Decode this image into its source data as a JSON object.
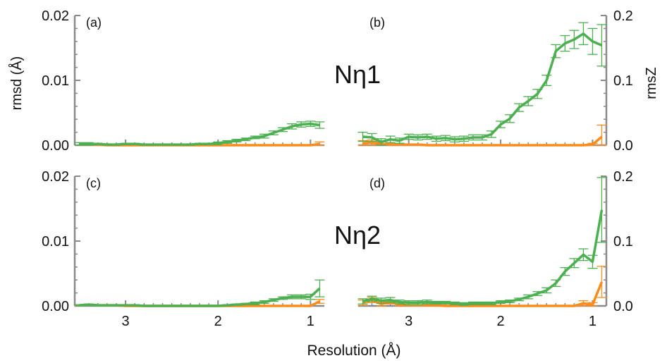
{
  "figure": {
    "xlabel": "Resolution (Å)",
    "ylabel_left": "rmsd (Å)",
    "ylabel_right": "rmsZ"
  },
  "chart_data": [
    {
      "type": "line",
      "panel": "a",
      "panel_label": "(a)",
      "annotation": "Nη1",
      "metric": "rmsd (Å)",
      "x_axis": {
        "reversed": true,
        "xlim": [
          3.55,
          0.85
        ],
        "ticks": [
          3,
          2,
          1
        ],
        "tick_labels": []
      },
      "y_axis": {
        "side": "left",
        "ylim": [
          0,
          0.02
        ],
        "ticks": [
          0,
          0.01,
          0.02
        ],
        "tick_labels": [
          "0.00",
          "0.01",
          "0.02"
        ]
      },
      "series": [
        {
          "color": "#4caf50",
          "x": [
            3.5,
            3.4,
            3.3,
            3.2,
            3.1,
            3.0,
            2.9,
            2.8,
            2.7,
            2.6,
            2.5,
            2.4,
            2.3,
            2.2,
            2.1,
            2.0,
            1.9,
            1.8,
            1.7,
            1.6,
            1.5,
            1.4,
            1.3,
            1.2,
            1.1,
            1.0,
            0.9
          ],
          "y": [
            0.0002,
            0.0002,
            0.0002,
            0.0001,
            0.0001,
            0.0002,
            0.0002,
            0.0001,
            0.0001,
            0.0001,
            0.0001,
            0.0001,
            0.0001,
            0.0002,
            0.0002,
            0.0003,
            0.0005,
            0.0007,
            0.0009,
            0.0012,
            0.0014,
            0.0019,
            0.0024,
            0.0029,
            0.0032,
            0.0033,
            0.0031
          ],
          "err": [
            0.0002,
            0.0002,
            0.0001,
            0.0001,
            0.0001,
            0.0001,
            0.0001,
            0.0001,
            0.0001,
            0.0001,
            0.0001,
            0.0001,
            0.0001,
            0.0001,
            0.0001,
            0.0002,
            0.0002,
            0.0002,
            0.0002,
            0.0002,
            0.0003,
            0.0003,
            0.0003,
            0.0004,
            0.0004,
            0.0004,
            0.0005
          ]
        },
        {
          "color": "#ff8c1a",
          "x": [
            3.5,
            3.4,
            3.3,
            3.2,
            3.1,
            3.0,
            2.9,
            2.8,
            2.7,
            2.6,
            2.5,
            2.4,
            2.3,
            2.2,
            2.1,
            2.0,
            1.9,
            1.8,
            1.7,
            1.6,
            1.5,
            1.4,
            1.3,
            1.2,
            1.1,
            1.0,
            0.9
          ],
          "y": [
            0.0001,
            0.0001,
            0.0001,
            0.0,
            0.0,
            0.0,
            0.0,
            0.0,
            0.0,
            0.0,
            0.0,
            0.0,
            0.0,
            0.0,
            0.0,
            0.0,
            0.0,
            0.0,
            0.0,
            0.0,
            0.0,
            0.0,
            0.0,
            0.0,
            0.0,
            0.0,
            0.0002
          ],
          "err": [
            0,
            0,
            0,
            0,
            0,
            0,
            0,
            0,
            0,
            0,
            0,
            0,
            0,
            0,
            0,
            0,
            0,
            0,
            0,
            0,
            0,
            0,
            0,
            0,
            0,
            0,
            0.0003
          ]
        }
      ]
    },
    {
      "type": "line",
      "panel": "b",
      "panel_label": "(b)",
      "annotation": "",
      "metric": "rmsZ",
      "x_axis": {
        "reversed": true,
        "xlim": [
          3.55,
          0.85
        ],
        "ticks": [
          3,
          2,
          1
        ],
        "tick_labels": []
      },
      "y_axis": {
        "side": "right",
        "ylim": [
          0,
          0.2
        ],
        "ticks": [
          0,
          0.1,
          0.2
        ],
        "tick_labels": [
          "0.0",
          "0.1",
          "0.2"
        ]
      },
      "series": [
        {
          "color": "#4caf50",
          "x": [
            3.5,
            3.4,
            3.3,
            3.2,
            3.1,
            3.0,
            2.9,
            2.8,
            2.7,
            2.6,
            2.5,
            2.4,
            2.3,
            2.2,
            2.1,
            2.0,
            1.9,
            1.8,
            1.7,
            1.6,
            1.5,
            1.4,
            1.3,
            1.2,
            1.1,
            1.0,
            0.9
          ],
          "y": [
            0.013,
            0.012,
            0.005,
            0.009,
            0.007,
            0.013,
            0.012,
            0.013,
            0.01,
            0.011,
            0.009,
            0.01,
            0.012,
            0.012,
            0.017,
            0.032,
            0.041,
            0.058,
            0.068,
            0.079,
            0.1,
            0.145,
            0.157,
            0.163,
            0.172,
            0.16,
            0.154
          ],
          "err": [
            0.007,
            0.006,
            0.005,
            0.005,
            0.004,
            0.004,
            0.004,
            0.004,
            0.004,
            0.004,
            0.004,
            0.004,
            0.004,
            0.004,
            0.005,
            0.005,
            0.006,
            0.006,
            0.007,
            0.007,
            0.008,
            0.01,
            0.012,
            0.014,
            0.017,
            0.02,
            0.032
          ]
        },
        {
          "color": "#ff8c1a",
          "x": [
            3.5,
            3.4,
            3.3,
            3.2,
            3.1,
            3.0,
            2.9,
            2.8,
            2.7,
            2.6,
            2.5,
            2.4,
            2.3,
            2.2,
            2.1,
            2.0,
            1.9,
            1.8,
            1.7,
            1.6,
            1.5,
            1.4,
            1.3,
            1.2,
            1.1,
            1.0,
            0.9
          ],
          "y": [
            0.003,
            0.004,
            0.002,
            0.001,
            0.001,
            0.001,
            0.001,
            0.0,
            0.0,
            0.0,
            0.0,
            0.0,
            0.0,
            0.0,
            0.0,
            0.0,
            0.0,
            0.0,
            0.0,
            0.0,
            0.0,
            0.0,
            0.0,
            0.0,
            0.0,
            0.001,
            0.013
          ],
          "err": [
            0.004,
            0.004,
            0.003,
            0.002,
            0.001,
            0.001,
            0.001,
            0,
            0,
            0,
            0,
            0,
            0,
            0,
            0,
            0,
            0,
            0,
            0,
            0,
            0,
            0,
            0,
            0,
            0,
            0.002,
            0.018
          ]
        }
      ]
    },
    {
      "type": "line",
      "panel": "c",
      "panel_label": "(c)",
      "annotation": "Nη2",
      "metric": "rmsd (Å)",
      "x_axis": {
        "reversed": true,
        "xlim": [
          3.55,
          0.85
        ],
        "ticks": [
          3,
          2,
          1
        ],
        "tick_labels": [
          "3",
          "2",
          "1"
        ]
      },
      "y_axis": {
        "side": "left",
        "ylim": [
          0,
          0.02
        ],
        "ticks": [
          0,
          0.01,
          0.02
        ],
        "tick_labels": [
          "0.00",
          "0.01",
          "0.02"
        ]
      },
      "series": [
        {
          "color": "#4caf50",
          "x": [
            3.5,
            3.4,
            3.3,
            3.2,
            3.1,
            3.0,
            2.9,
            2.8,
            2.7,
            2.6,
            2.5,
            2.4,
            2.3,
            2.2,
            2.1,
            2.0,
            1.9,
            1.8,
            1.7,
            1.6,
            1.5,
            1.4,
            1.3,
            1.2,
            1.1,
            1.0,
            0.9
          ],
          "y": [
            0.0001,
            0.0002,
            0.0001,
            0.0001,
            0.0001,
            0.0001,
            0.0001,
            0.0,
            0.0,
            0.0,
            0.0,
            0.0,
            0.0,
            0.0,
            0.0,
            0.0,
            0.0001,
            0.0002,
            0.0003,
            0.0004,
            0.0006,
            0.0009,
            0.0012,
            0.0014,
            0.0014,
            0.0014,
            0.0027
          ],
          "err": [
            0.0001,
            0.0001,
            0.0001,
            0.0001,
            0.0001,
            0.0001,
            0.0001,
            0.0001,
            0.0001,
            0.0001,
            0.0001,
            0.0001,
            0.0001,
            0.0001,
            0.0001,
            0.0001,
            0.0001,
            0.0001,
            0.0001,
            0.0002,
            0.0002,
            0.0002,
            0.0002,
            0.0003,
            0.0003,
            0.0004,
            0.0013
          ]
        },
        {
          "color": "#ff8c1a",
          "x": [
            3.5,
            3.4,
            3.3,
            3.2,
            3.1,
            3.0,
            2.9,
            2.8,
            2.7,
            2.6,
            2.5,
            2.4,
            2.3,
            2.2,
            2.1,
            2.0,
            1.9,
            1.8,
            1.7,
            1.6,
            1.5,
            1.4,
            1.3,
            1.2,
            1.1,
            1.0,
            0.9
          ],
          "y": [
            0.0001,
            0.0002,
            0.0001,
            0.0001,
            0.0001,
            0.0,
            0.0,
            0.0,
            0.0,
            0.0,
            0.0,
            0.0,
            0.0,
            0.0,
            0.0,
            0.0,
            0.0,
            0.0,
            0.0,
            0.0,
            0.0,
            0.0,
            0.0,
            0.0,
            0.0,
            0.0,
            0.0007
          ],
          "err": [
            0.0001,
            0.0001,
            0,
            0,
            0,
            0,
            0,
            0,
            0,
            0,
            0,
            0,
            0,
            0,
            0,
            0,
            0,
            0,
            0,
            0,
            0,
            0,
            0,
            0,
            0,
            0,
            0.0003
          ]
        }
      ]
    },
    {
      "type": "line",
      "panel": "d",
      "panel_label": "(d)",
      "annotation": "",
      "metric": "rmsZ",
      "x_axis": {
        "reversed": true,
        "xlim": [
          3.55,
          0.85
        ],
        "ticks": [
          3,
          2,
          1
        ],
        "tick_labels": [
          "3",
          "2",
          "1"
        ]
      },
      "y_axis": {
        "side": "right",
        "ylim": [
          0,
          0.2
        ],
        "ticks": [
          0,
          0.1,
          0.2
        ],
        "tick_labels": [
          "0.0",
          "0.1",
          "0.2"
        ]
      },
      "series": [
        {
          "color": "#4caf50",
          "x": [
            3.5,
            3.4,
            3.3,
            3.2,
            3.1,
            3.0,
            2.9,
            2.8,
            2.7,
            2.6,
            2.5,
            2.4,
            2.3,
            2.2,
            2.1,
            2.0,
            1.9,
            1.8,
            1.7,
            1.6,
            1.5,
            1.4,
            1.3,
            1.2,
            1.1,
            1.0,
            0.9
          ],
          "y": [
            0.007,
            0.011,
            0.008,
            0.009,
            0.006,
            0.005,
            0.005,
            0.006,
            0.005,
            0.005,
            0.004,
            0.003,
            0.004,
            0.004,
            0.004,
            0.006,
            0.007,
            0.01,
            0.014,
            0.019,
            0.024,
            0.035,
            0.053,
            0.066,
            0.079,
            0.068,
            0.148
          ],
          "err": [
            0.004,
            0.004,
            0.004,
            0.004,
            0.003,
            0.003,
            0.003,
            0.003,
            0.002,
            0.002,
            0.002,
            0.002,
            0.002,
            0.002,
            0.002,
            0.002,
            0.002,
            0.002,
            0.003,
            0.003,
            0.004,
            0.005,
            0.006,
            0.007,
            0.009,
            0.01,
            0.05
          ]
        },
        {
          "color": "#ff8c1a",
          "x": [
            3.5,
            3.4,
            3.3,
            3.2,
            3.1,
            3.0,
            2.9,
            2.8,
            2.7,
            2.6,
            2.5,
            2.4,
            2.3,
            2.2,
            2.1,
            2.0,
            1.9,
            1.8,
            1.7,
            1.6,
            1.5,
            1.4,
            1.3,
            1.2,
            1.1,
            1.0,
            0.9
          ],
          "y": [
            0.005,
            0.009,
            0.003,
            0.006,
            0.002,
            0.001,
            0.001,
            0.001,
            0.001,
            0.0,
            0.0,
            0.0,
            0.0,
            0.0,
            0.0,
            0.0,
            0.0,
            0.0,
            0.0,
            0.0,
            0.0,
            0.0,
            0.0,
            0.0,
            0.004,
            0.002,
            0.037
          ],
          "err": [
            0.004,
            0.004,
            0.003,
            0.003,
            0.002,
            0.001,
            0.001,
            0.001,
            0.001,
            0,
            0,
            0,
            0,
            0,
            0,
            0,
            0,
            0,
            0,
            0,
            0,
            0,
            0,
            0,
            0.004,
            0.003,
            0.024
          ]
        }
      ]
    }
  ]
}
